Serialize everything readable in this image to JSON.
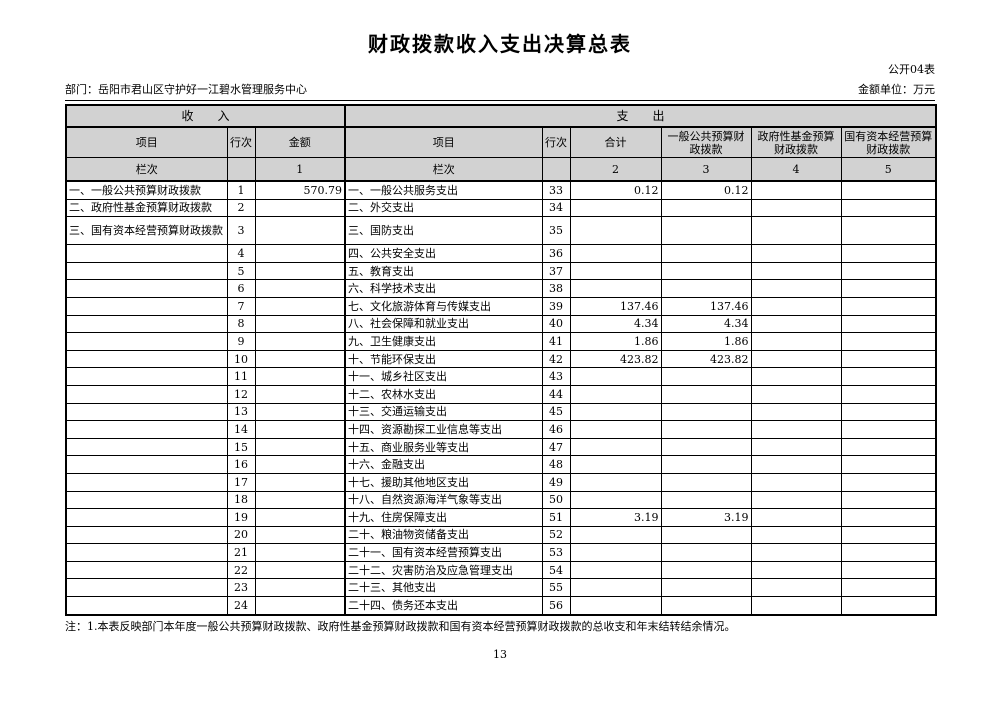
{
  "page": {
    "title": "财政拨款收入支出决算总表",
    "form_code": "公开04表",
    "department": "部门：岳阳市君山区守护好一江碧水管理服务中心",
    "unit": "金额单位：万元",
    "note": "注：1.本表反映部门本年度一般公共预算财政拨款、政府性基金预算财政拨款和国有资本经营预算财政拨款的总收支和年末结转结余情况。",
    "page_number": "13"
  },
  "colors": {
    "header_bg": "#d2d2d2",
    "border": "#000000",
    "page_bg": "#ffffff"
  },
  "table": {
    "income_header": "收　　入",
    "expense_header": "支　　出",
    "columns": {
      "income_item": "项目",
      "income_line": "行次",
      "income_amount": "金额",
      "expense_item": "项目",
      "expense_line": "行次",
      "expense_total": "合计",
      "expense_general": "一般公共预算财政拨款",
      "expense_govfund": "政府性基金预算财政拨款",
      "expense_statecap": "国有资本经营预算财政拨款"
    },
    "colindex": {
      "income_label": "栏次",
      "income_line": "",
      "income_amount": "1",
      "expense_label": "栏次",
      "expense_line": "",
      "expense_total": "2",
      "expense_general": "3",
      "expense_govfund": "4",
      "expense_statecap": "5"
    },
    "rows": [
      {
        "tall": false,
        "cells": [
          "一、一般公共预算财政拨款",
          "1",
          "570.79",
          "一、一般公共服务支出",
          "33",
          "0.12",
          "0.12",
          "",
          ""
        ]
      },
      {
        "tall": false,
        "cells": [
          "二、政府性基金预算财政拨款",
          "2",
          "",
          "二、外交支出",
          "34",
          "",
          "",
          "",
          ""
        ]
      },
      {
        "tall": true,
        "cells": [
          "三、国有资本经营预算财政拨款",
          "3",
          "",
          "三、国防支出",
          "35",
          "",
          "",
          "",
          ""
        ]
      },
      {
        "tall": false,
        "cells": [
          "",
          "4",
          "",
          "四、公共安全支出",
          "36",
          "",
          "",
          "",
          ""
        ]
      },
      {
        "tall": false,
        "cells": [
          "",
          "5",
          "",
          "五、教育支出",
          "37",
          "",
          "",
          "",
          ""
        ]
      },
      {
        "tall": false,
        "cells": [
          "",
          "6",
          "",
          "六、科学技术支出",
          "38",
          "",
          "",
          "",
          ""
        ]
      },
      {
        "tall": false,
        "cells": [
          "",
          "7",
          "",
          "七、文化旅游体育与传媒支出",
          "39",
          "137.46",
          "137.46",
          "",
          ""
        ]
      },
      {
        "tall": false,
        "cells": [
          "",
          "8",
          "",
          "八、社会保障和就业支出",
          "40",
          "4.34",
          "4.34",
          "",
          ""
        ]
      },
      {
        "tall": false,
        "cells": [
          "",
          "9",
          "",
          "九、卫生健康支出",
          "41",
          "1.86",
          "1.86",
          "",
          ""
        ]
      },
      {
        "tall": false,
        "cells": [
          "",
          "10",
          "",
          "十、节能环保支出",
          "42",
          "423.82",
          "423.82",
          "",
          ""
        ]
      },
      {
        "tall": false,
        "cells": [
          "",
          "11",
          "",
          "十一、城乡社区支出",
          "43",
          "",
          "",
          "",
          ""
        ]
      },
      {
        "tall": false,
        "cells": [
          "",
          "12",
          "",
          "十二、农林水支出",
          "44",
          "",
          "",
          "",
          ""
        ]
      },
      {
        "tall": false,
        "cells": [
          "",
          "13",
          "",
          "十三、交通运输支出",
          "45",
          "",
          "",
          "",
          ""
        ]
      },
      {
        "tall": false,
        "cells": [
          "",
          "14",
          "",
          "十四、资源勘探工业信息等支出",
          "46",
          "",
          "",
          "",
          ""
        ]
      },
      {
        "tall": false,
        "cells": [
          "",
          "15",
          "",
          "十五、商业服务业等支出",
          "47",
          "",
          "",
          "",
          ""
        ]
      },
      {
        "tall": false,
        "cells": [
          "",
          "16",
          "",
          "十六、金融支出",
          "48",
          "",
          "",
          "",
          ""
        ]
      },
      {
        "tall": false,
        "cells": [
          "",
          "17",
          "",
          "十七、援助其他地区支出",
          "49",
          "",
          "",
          "",
          ""
        ]
      },
      {
        "tall": false,
        "cells": [
          "",
          "18",
          "",
          "十八、自然资源海洋气象等支出",
          "50",
          "",
          "",
          "",
          ""
        ]
      },
      {
        "tall": false,
        "cells": [
          "",
          "19",
          "",
          "十九、住房保障支出",
          "51",
          "3.19",
          "3.19",
          "",
          ""
        ]
      },
      {
        "tall": false,
        "cells": [
          "",
          "20",
          "",
          "二十、粮油物资储备支出",
          "52",
          "",
          "",
          "",
          ""
        ]
      },
      {
        "tall": false,
        "cells": [
          "",
          "21",
          "",
          "二十一、国有资本经营预算支出",
          "53",
          "",
          "",
          "",
          ""
        ]
      },
      {
        "tall": false,
        "cells": [
          "",
          "22",
          "",
          "二十二、灾害防治及应急管理支出",
          "54",
          "",
          "",
          "",
          ""
        ]
      },
      {
        "tall": false,
        "cells": [
          "",
          "23",
          "",
          "二十三、其他支出",
          "55",
          "",
          "",
          "",
          ""
        ]
      },
      {
        "tall": false,
        "cells": [
          "",
          "24",
          "",
          "二十四、债务还本支出",
          "56",
          "",
          "",
          "",
          ""
        ]
      }
    ]
  }
}
